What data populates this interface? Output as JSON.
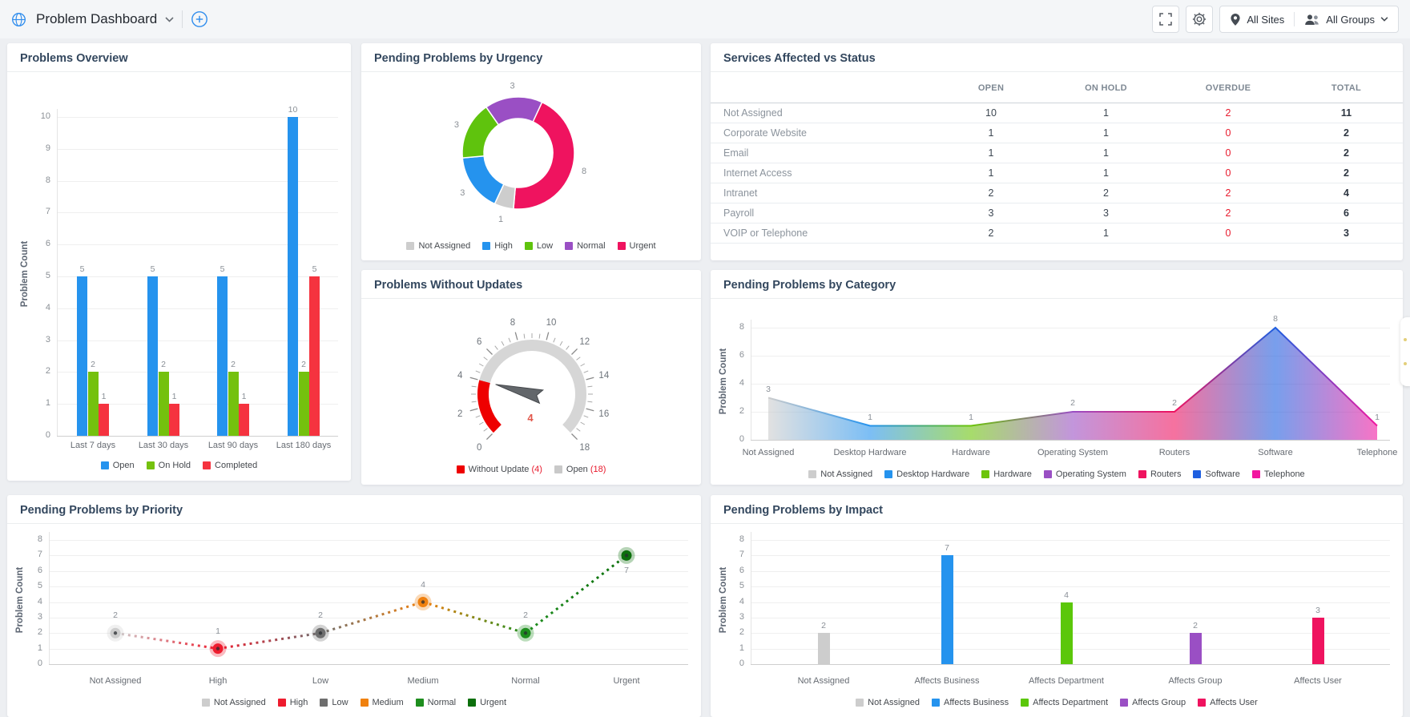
{
  "topbar": {
    "title": "Problem Dashboard",
    "all_sites": "All Sites",
    "all_groups": "All Groups"
  },
  "chart_data": [
    {
      "type": "bar",
      "title": "Problems Overview",
      "ylabel": "Problem Count",
      "ylim": [
        0,
        10
      ],
      "ytick_step": 1,
      "categories": [
        "Last 7 days",
        "Last 30 days",
        "Last 90 days",
        "Last 180 days"
      ],
      "series": [
        {
          "name": "Open",
          "color": "#2593ee",
          "values": [
            5,
            5,
            5,
            10
          ]
        },
        {
          "name": "On Hold",
          "color": "#74c10e",
          "values": [
            2,
            2,
            2,
            2
          ]
        },
        {
          "name": "Completed",
          "color": "#f5333f",
          "values": [
            1,
            1,
            1,
            5
          ]
        }
      ],
      "legend_position": "bottom"
    },
    {
      "type": "pie",
      "title": "Pending Problems by Urgency",
      "labels": [
        "Not Assigned",
        "High",
        "Low",
        "Normal",
        "Urgent"
      ],
      "values": [
        1,
        3,
        3,
        3,
        8
      ],
      "colors": [
        "#cdcdcd",
        "#2593ee",
        "#5fc30d",
        "#9a4fc4",
        "#ef135f"
      ],
      "start_angle_deg": 25,
      "draw_order": [
        4,
        0,
        1,
        2,
        3
      ],
      "inner_radius_pct": 61,
      "legend_position": "bottom"
    },
    {
      "type": "table",
      "title": "Services Affected vs Status",
      "headers": [
        "",
        "OPEN",
        "ON HOLD",
        "OVERDUE",
        "TOTAL"
      ],
      "rows": [
        [
          "Not Assigned",
          "10",
          "1",
          "2",
          "11"
        ],
        [
          "Corporate Website",
          "1",
          "1",
          "0",
          "2"
        ],
        [
          "Email",
          "1",
          "1",
          "0",
          "2"
        ],
        [
          "Internet Access",
          "1",
          "1",
          "0",
          "2"
        ],
        [
          "Intranet",
          "2",
          "2",
          "2",
          "4"
        ],
        [
          "Payroll",
          "3",
          "3",
          "2",
          "6"
        ],
        [
          "VOIP or Telephone",
          "2",
          "1",
          "0",
          "3"
        ]
      ],
      "overdue_color": "#e8192c"
    },
    {
      "type": "gauge",
      "title": "Problems Without Updates",
      "min": 0,
      "max": 18,
      "major_tick_step": 2,
      "minor_tick_step": 0.5,
      "value": 4,
      "value_color": "#e2574b",
      "bands": [
        {
          "from": 0,
          "to": 4,
          "color": "#ee0000"
        },
        {
          "from": 4,
          "to": 18,
          "color": "#d6d6d6"
        }
      ],
      "legend": [
        {
          "label": "Without Update",
          "count": 4,
          "color": "#ee0000"
        },
        {
          "label": "Open",
          "count": 18,
          "color": "#c9c9c9"
        }
      ]
    },
    {
      "type": "area",
      "title": "Pending Problems by Category",
      "ylabel": "Problem Count",
      "ylim": [
        0,
        8
      ],
      "ytick_step": 2,
      "categories": [
        "Not Assigned",
        "Desktop Hardware",
        "Hardware",
        "Operating System",
        "Routers",
        "Software",
        "Telephone"
      ],
      "values": [
        3,
        1,
        1,
        2,
        2,
        8,
        1
      ],
      "colors": [
        "#cdcdcd",
        "#2593ee",
        "#6cc40a",
        "#9a4fc4",
        "#ef135f",
        "#1e5fe0",
        "#f217a0"
      ],
      "legend_position": "bottom"
    },
    {
      "type": "line",
      "title": "Pending Problems by Priority",
      "ylabel": "Problem Count",
      "ylim": [
        0,
        8
      ],
      "ytick_step": 1,
      "style": "dotted",
      "categories": [
        "Not Assigned",
        "High",
        "Low",
        "Medium",
        "Normal",
        "Urgent"
      ],
      "values": [
        2,
        1,
        2,
        4,
        2,
        7
      ],
      "colors": [
        "#cdcdcd",
        "#ee1c2e",
        "#6e6e6e",
        "#f0810f",
        "#1e8e1e",
        "#0c6f0c"
      ],
      "legend_position": "bottom"
    },
    {
      "type": "bar",
      "title": "Pending Problems by Impact",
      "ylabel": "Problem Count",
      "ylim": [
        0,
        8
      ],
      "ytick_step": 1,
      "categories": [
        "Not Assigned",
        "Affects Business",
        "Affects Department",
        "Affects Group",
        "Affects User"
      ],
      "values": [
        2,
        7,
        4,
        2,
        3
      ],
      "colors": [
        "#cdcdcd",
        "#2593ee",
        "#5bc70a",
        "#9a4fc4",
        "#ef135f"
      ],
      "legend_position": "bottom"
    }
  ]
}
